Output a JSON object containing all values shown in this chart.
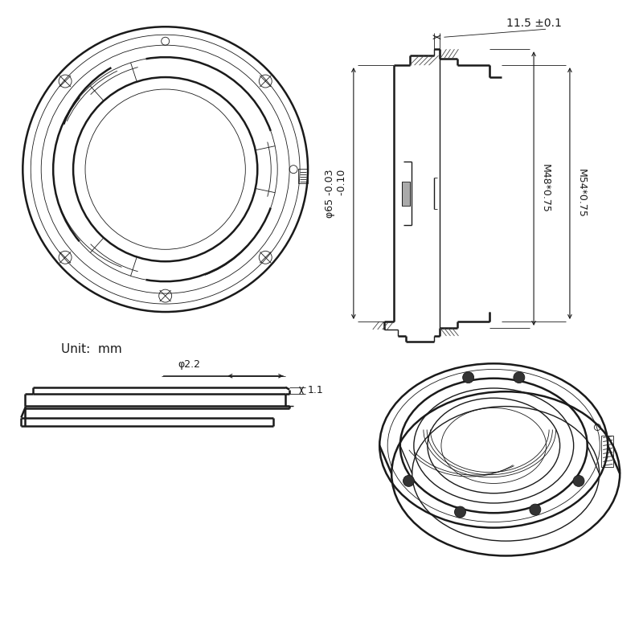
{
  "bg_color": "#ffffff",
  "lc": "#1a1a1a",
  "lw": 1.0,
  "lw_t": 0.6,
  "lw_tk": 1.8,
  "unit_text": "Unit:  mm",
  "dim_width_top": "11.5 ±0.1",
  "dim_dia65": "φ65 -0.03\n      -0.10",
  "dim_m48": "M48*0.75",
  "dim_m54": "M54*0.75",
  "dim_dia22": "φ2.2",
  "dim_h11": "1.1"
}
